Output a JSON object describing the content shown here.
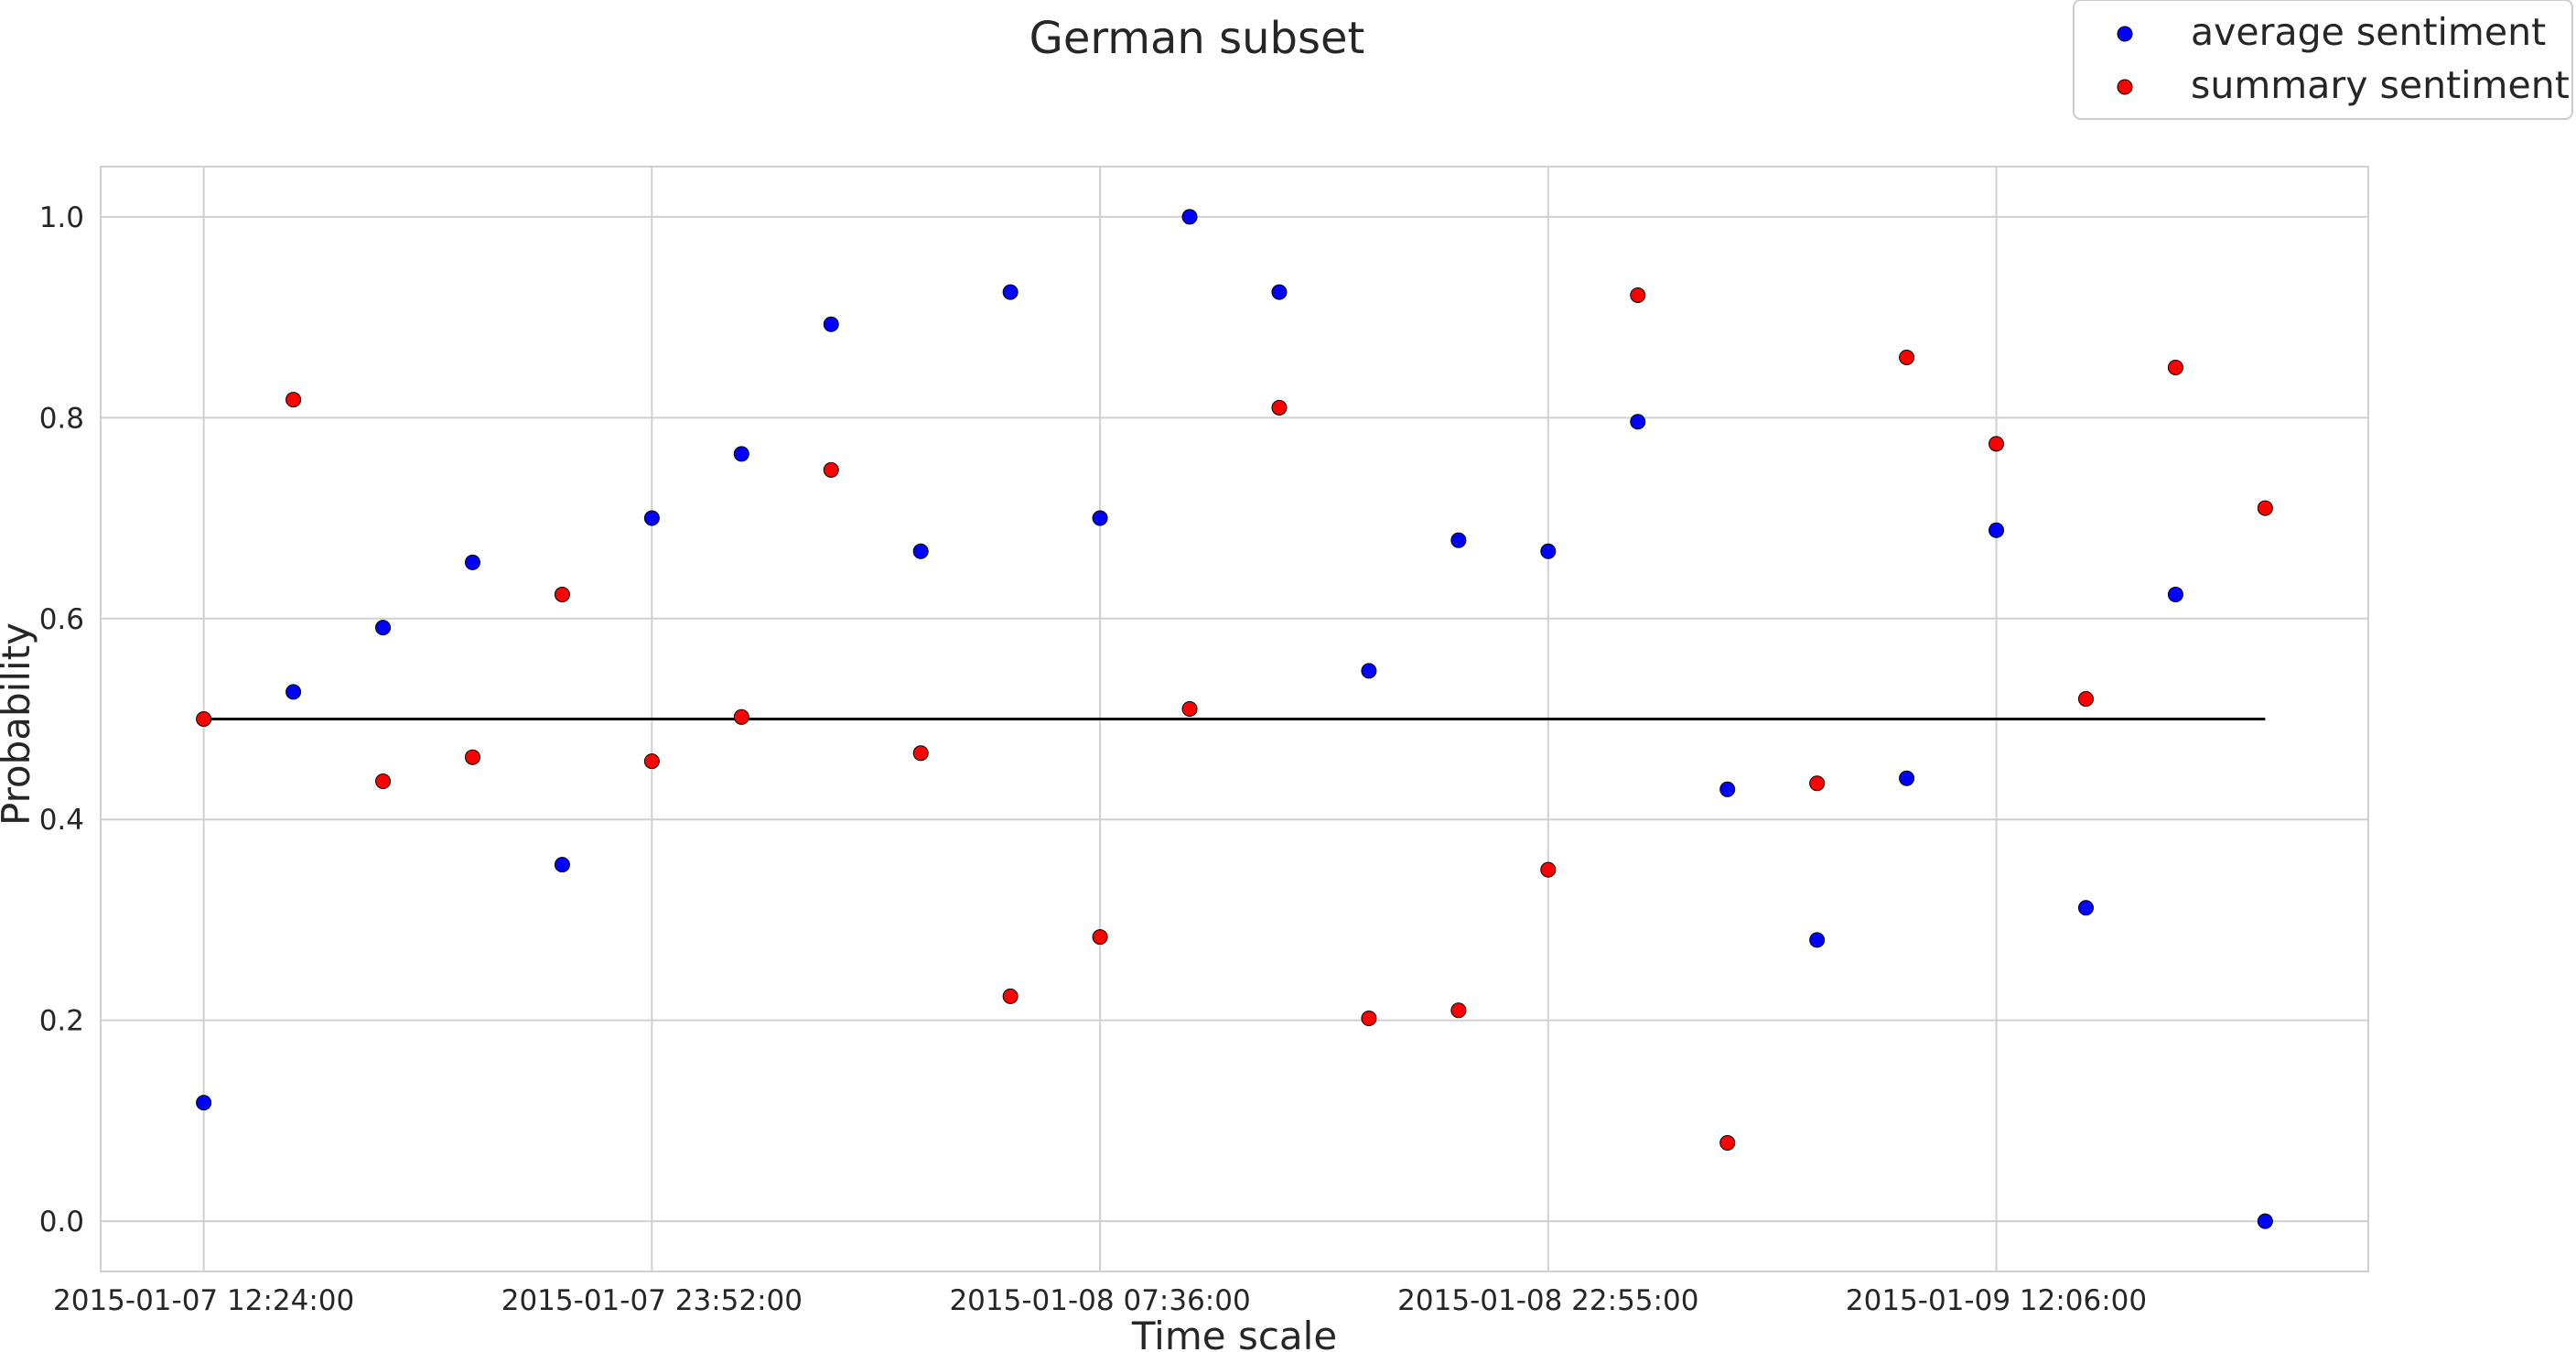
{
  "chart_data": {
    "type": "scatter",
    "title": "German subset",
    "xlabel": "Time scale",
    "ylabel": "Probability",
    "ylim": [
      -0.05,
      1.05
    ],
    "yticks": [
      "0.0",
      "0.2",
      "0.4",
      "0.6",
      "0.8",
      "1.0"
    ],
    "x_index_range": [
      -1.15,
      24.15
    ],
    "xtick_labels": [
      {
        "index": 0,
        "label": "2015-01-07 12:24:00"
      },
      {
        "index": 5,
        "label": "2015-01-07 23:52:00"
      },
      {
        "index": 10,
        "label": "2015-01-08 07:36:00"
      },
      {
        "index": 15,
        "label": "2015-01-08 22:55:00"
      },
      {
        "index": 20,
        "label": "2015-01-09 12:06:00"
      }
    ],
    "grid": true,
    "legend_position": "top-right",
    "reference_line": {
      "y": 0.5,
      "color": "#000000"
    },
    "series": [
      {
        "name": "average sentiment",
        "color": "#0000ff",
        "values": [
          0.118,
          0.527,
          0.591,
          0.656,
          0.355,
          0.7,
          0.764,
          0.893,
          0.667,
          0.925,
          0.7,
          1.0,
          0.925,
          0.548,
          0.678,
          0.667,
          0.796,
          0.43,
          0.28,
          0.441,
          0.688,
          0.312,
          0.624,
          0.0
        ]
      },
      {
        "name": "summary sentiment",
        "color": "#ff0000",
        "values": [
          0.5,
          0.818,
          0.438,
          0.462,
          0.624,
          0.458,
          0.502,
          0.748,
          0.466,
          0.224,
          0.283,
          0.51,
          0.81,
          0.202,
          0.21,
          0.35,
          0.922,
          0.078,
          0.436,
          0.86,
          0.774,
          0.52,
          0.85,
          0.71
        ]
      }
    ]
  }
}
